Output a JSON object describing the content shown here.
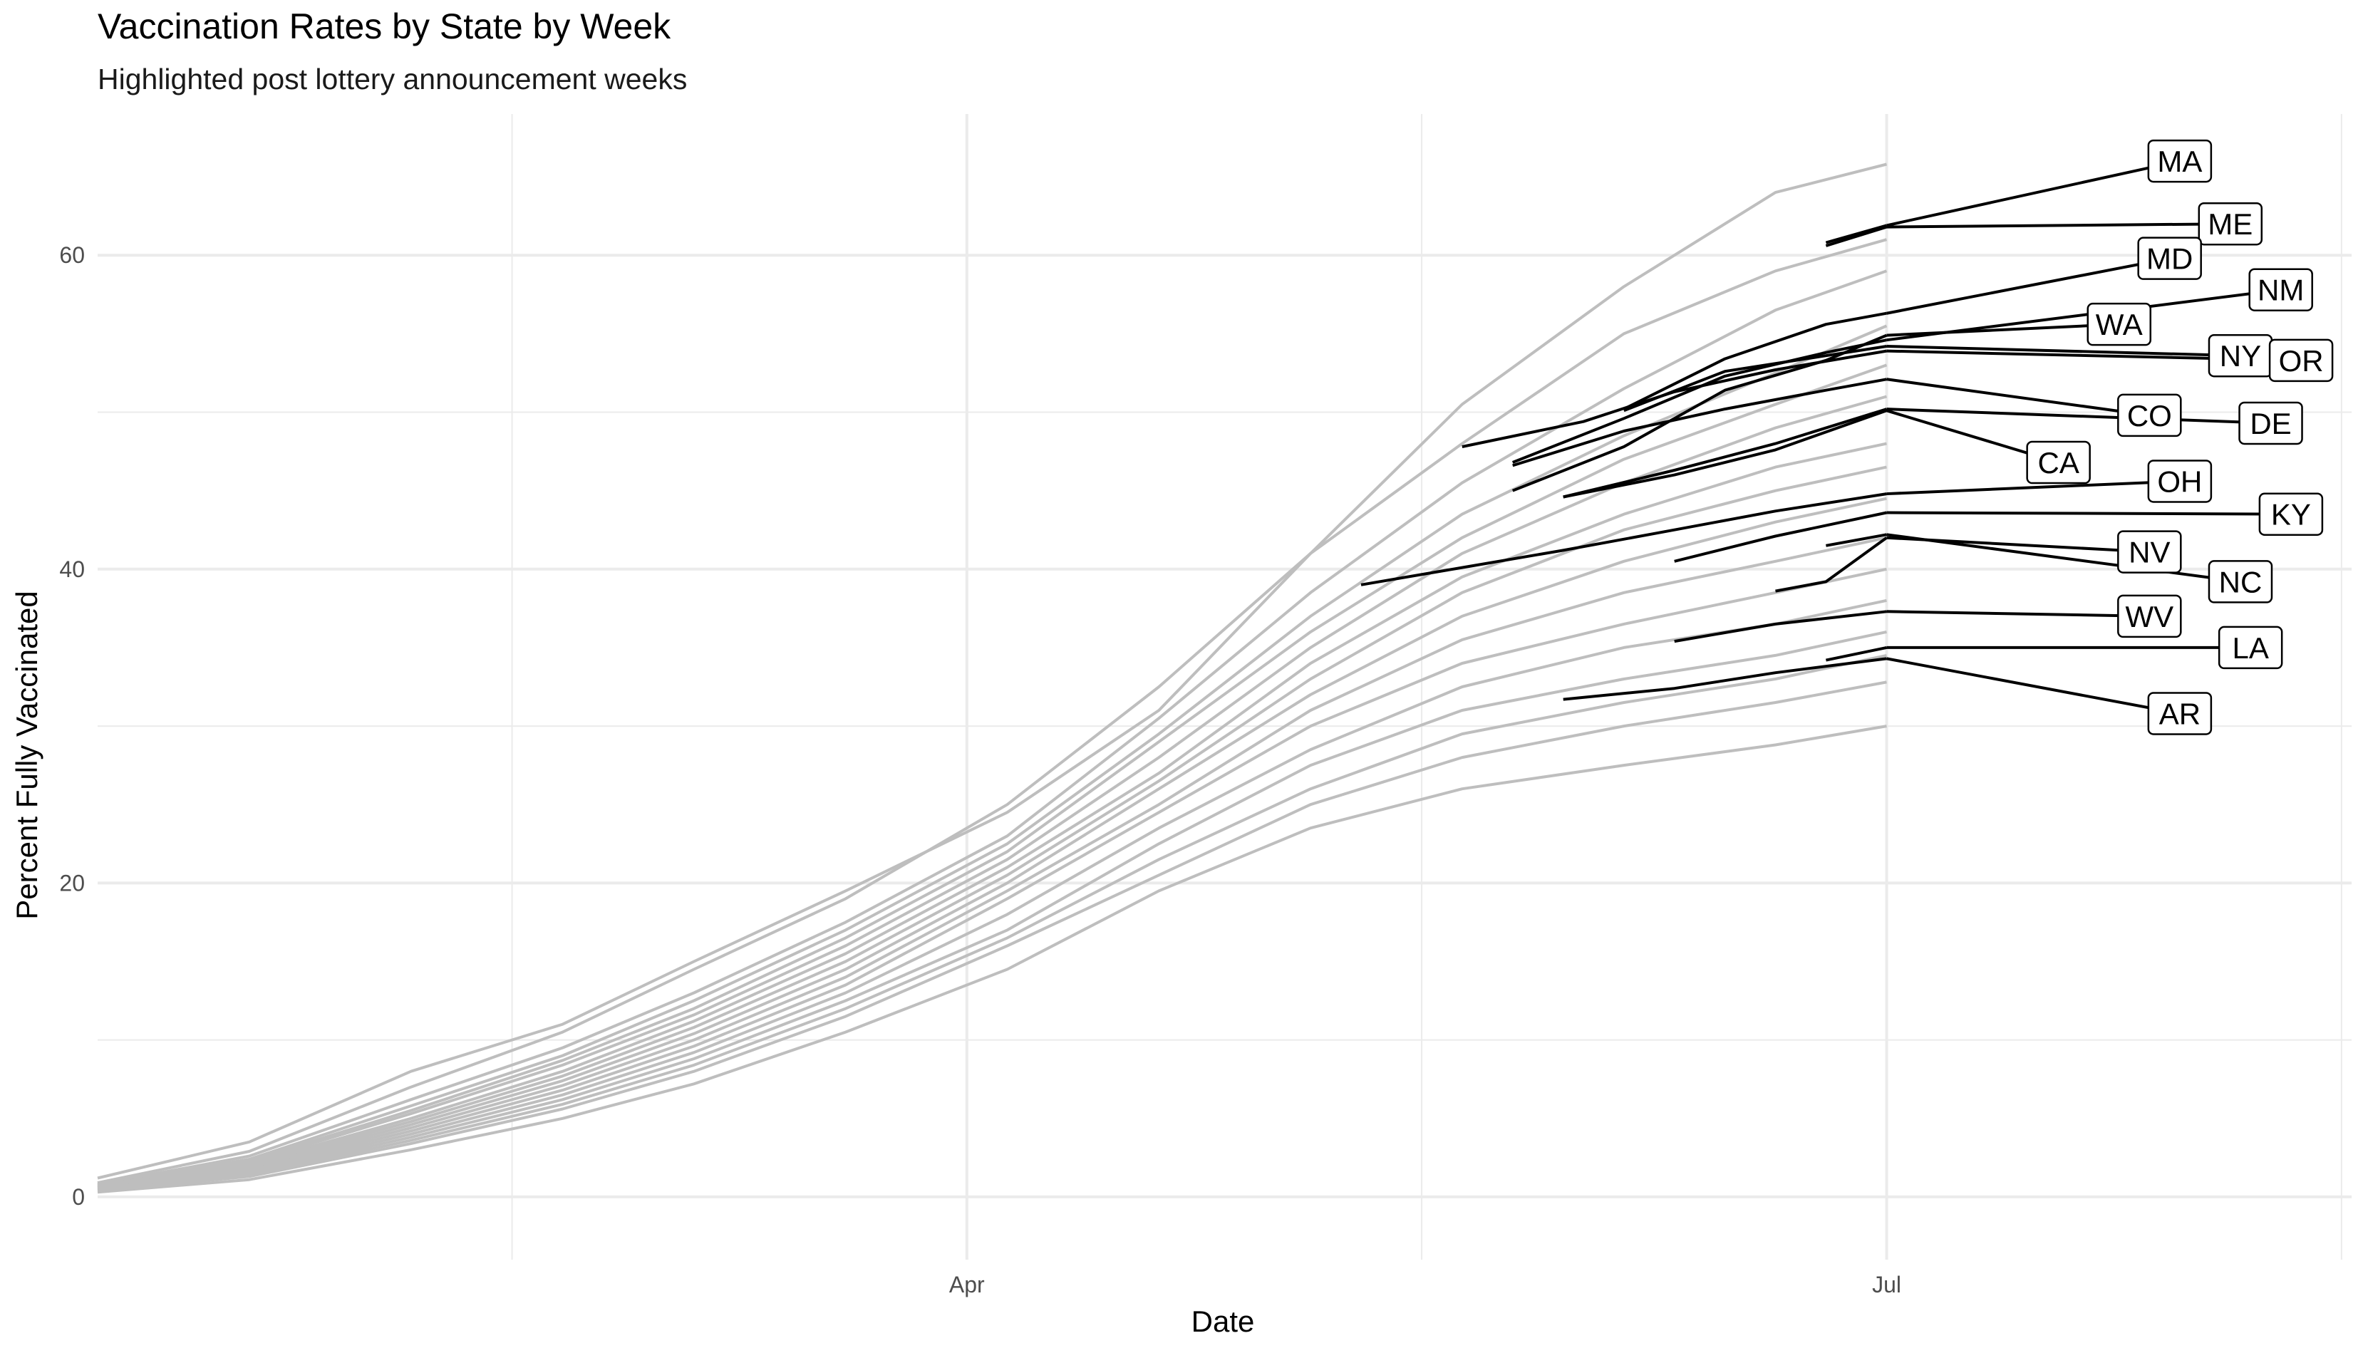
{
  "chart_data": {
    "type": "line",
    "title": "Vaccination Rates by State by Week",
    "subtitle": "Highlighted post lottery announcement weeks",
    "xlabel": "Date",
    "ylabel": "Percent Fully Vaccinated",
    "x_ticks": [
      "Apr",
      "Jul"
    ],
    "y_ticks": [
      0,
      20,
      40,
      60
    ],
    "ylim": [
      -4,
      69
    ],
    "xlim": [
      "2021-01-05",
      "2021-08-16"
    ],
    "grid": true,
    "colors": {
      "background": "#ffffff",
      "other_states": "#bebebe",
      "highlight": "#000000",
      "grid_major": "#ebebeb"
    },
    "background_states": [
      {
        "dates": [
          "2021-01-05",
          "2021-01-20",
          "2021-02-05",
          "2021-02-20",
          "2021-03-05",
          "2021-03-20",
          "2021-04-05",
          "2021-04-20",
          "2021-05-05",
          "2021-05-20",
          "2021-06-05",
          "2021-06-20",
          "2021-07-01"
        ],
        "values": [
          1.2,
          3.5,
          8.0,
          11.0,
          15.0,
          19.5,
          24.5,
          31.0,
          41.0,
          50.5,
          58.0,
          64.0,
          65.8
        ]
      },
      {
        "dates": [
          "2021-01-05",
          "2021-01-20",
          "2021-02-05",
          "2021-02-20",
          "2021-03-05",
          "2021-03-20",
          "2021-04-05",
          "2021-04-20",
          "2021-05-05",
          "2021-05-20",
          "2021-06-05",
          "2021-06-20",
          "2021-07-01"
        ],
        "values": [
          0.9,
          2.9,
          7.0,
          10.5,
          14.5,
          19.0,
          25.0,
          32.5,
          41.0,
          48.0,
          55.0,
          59.0,
          61.0
        ]
      },
      {
        "dates": [
          "2021-01-05",
          "2021-01-20",
          "2021-02-05",
          "2021-02-20",
          "2021-03-05",
          "2021-03-20",
          "2021-04-05",
          "2021-04-20",
          "2021-05-05",
          "2021-05-20",
          "2021-06-05",
          "2021-06-20",
          "2021-07-01"
        ],
        "values": [
          0.8,
          2.6,
          6.2,
          9.5,
          13.0,
          17.5,
          23.0,
          30.5,
          38.5,
          45.5,
          51.5,
          56.5,
          59.0
        ]
      },
      {
        "dates": [
          "2021-01-05",
          "2021-01-20",
          "2021-02-05",
          "2021-02-20",
          "2021-03-05",
          "2021-03-20",
          "2021-04-05",
          "2021-04-20",
          "2021-05-05",
          "2021-05-20",
          "2021-06-05",
          "2021-06-20",
          "2021-07-01"
        ],
        "values": [
          0.8,
          2.4,
          5.8,
          9.0,
          12.5,
          17.0,
          22.5,
          29.5,
          37.0,
          43.5,
          48.5,
          52.5,
          55.5
        ]
      },
      {
        "dates": [
          "2021-01-05",
          "2021-01-20",
          "2021-02-05",
          "2021-02-20",
          "2021-03-05",
          "2021-03-20",
          "2021-04-05",
          "2021-04-20",
          "2021-05-05",
          "2021-05-20",
          "2021-06-05",
          "2021-06-20",
          "2021-07-01"
        ],
        "values": [
          0.7,
          2.3,
          5.5,
          8.7,
          12.0,
          16.5,
          22.0,
          29.0,
          36.0,
          42.0,
          47.0,
          50.5,
          53.0
        ]
      },
      {
        "dates": [
          "2021-01-05",
          "2021-01-20",
          "2021-02-05",
          "2021-02-20",
          "2021-03-05",
          "2021-03-20",
          "2021-04-05",
          "2021-04-20",
          "2021-05-05",
          "2021-05-20",
          "2021-06-05",
          "2021-06-20",
          "2021-07-01"
        ],
        "values": [
          0.7,
          2.2,
          5.3,
          8.4,
          11.6,
          16.0,
          21.5,
          28.0,
          35.0,
          41.0,
          45.5,
          49.0,
          51.0
        ]
      },
      {
        "dates": [
          "2021-01-05",
          "2021-01-20",
          "2021-02-05",
          "2021-02-20",
          "2021-03-05",
          "2021-03-20",
          "2021-04-05",
          "2021-04-20",
          "2021-05-05",
          "2021-05-20",
          "2021-06-05",
          "2021-06-20",
          "2021-07-01"
        ],
        "values": [
          0.7,
          2.1,
          5.0,
          8.0,
          11.2,
          15.5,
          21.0,
          27.0,
          34.0,
          39.5,
          43.5,
          46.5,
          48.0
        ]
      },
      {
        "dates": [
          "2021-01-05",
          "2021-01-20",
          "2021-02-05",
          "2021-02-20",
          "2021-03-05",
          "2021-03-20",
          "2021-04-05",
          "2021-04-20",
          "2021-05-05",
          "2021-05-20",
          "2021-06-05",
          "2021-06-20",
          "2021-07-01"
        ],
        "values": [
          0.6,
          2.0,
          4.8,
          7.7,
          10.8,
          15.0,
          20.5,
          26.5,
          33.0,
          38.5,
          42.5,
          45.0,
          46.5
        ]
      },
      {
        "dates": [
          "2021-01-05",
          "2021-01-20",
          "2021-02-05",
          "2021-02-20",
          "2021-03-05",
          "2021-03-20",
          "2021-04-05",
          "2021-04-20",
          "2021-05-05",
          "2021-05-20",
          "2021-06-05",
          "2021-06-20",
          "2021-07-01"
        ],
        "values": [
          0.6,
          1.9,
          4.6,
          7.4,
          10.4,
          14.5,
          20.0,
          26.0,
          32.0,
          37.0,
          40.5,
          43.0,
          44.5
        ]
      },
      {
        "dates": [
          "2021-01-05",
          "2021-01-20",
          "2021-02-05",
          "2021-02-20",
          "2021-03-05",
          "2021-03-20",
          "2021-04-05",
          "2021-04-20",
          "2021-05-05",
          "2021-05-20",
          "2021-06-05",
          "2021-06-20",
          "2021-07-01"
        ],
        "values": [
          0.6,
          1.8,
          4.4,
          7.1,
          10.0,
          14.0,
          19.5,
          25.0,
          31.0,
          35.5,
          38.5,
          40.5,
          42.0
        ]
      },
      {
        "dates": [
          "2021-01-05",
          "2021-01-20",
          "2021-02-05",
          "2021-02-20",
          "2021-03-05",
          "2021-03-20",
          "2021-04-05",
          "2021-04-20",
          "2021-05-05",
          "2021-05-20",
          "2021-06-05",
          "2021-06-20",
          "2021-07-01"
        ],
        "values": [
          0.5,
          1.7,
          4.2,
          6.8,
          9.6,
          13.5,
          19.0,
          24.5,
          30.0,
          34.0,
          36.5,
          38.5,
          40.0
        ]
      },
      {
        "dates": [
          "2021-01-05",
          "2021-01-20",
          "2021-02-05",
          "2021-02-20",
          "2021-03-05",
          "2021-03-20",
          "2021-04-05",
          "2021-04-20",
          "2021-05-05",
          "2021-05-20",
          "2021-06-05",
          "2021-06-20",
          "2021-07-01"
        ],
        "values": [
          0.5,
          1.6,
          4.0,
          6.5,
          9.2,
          13.0,
          18.0,
          23.5,
          28.5,
          32.5,
          35.0,
          36.5,
          38.0
        ]
      },
      {
        "dates": [
          "2021-01-05",
          "2021-01-20",
          "2021-02-05",
          "2021-02-20",
          "2021-03-05",
          "2021-03-20",
          "2021-04-05",
          "2021-04-20",
          "2021-05-05",
          "2021-05-20",
          "2021-06-05",
          "2021-06-20",
          "2021-07-01"
        ],
        "values": [
          0.5,
          1.5,
          3.8,
          6.2,
          8.8,
          12.5,
          17.0,
          22.5,
          27.5,
          31.0,
          33.0,
          34.5,
          36.0
        ]
      },
      {
        "dates": [
          "2021-01-05",
          "2021-01-20",
          "2021-02-05",
          "2021-02-20",
          "2021-03-05",
          "2021-03-20",
          "2021-04-05",
          "2021-04-20",
          "2021-05-05",
          "2021-05-20",
          "2021-06-05",
          "2021-06-20",
          "2021-07-01"
        ],
        "values": [
          0.4,
          1.4,
          3.6,
          5.9,
          8.4,
          12.0,
          16.5,
          21.5,
          26.0,
          29.5,
          31.5,
          33.0,
          34.5
        ]
      },
      {
        "dates": [
          "2021-01-05",
          "2021-01-20",
          "2021-02-05",
          "2021-02-20",
          "2021-03-05",
          "2021-03-20",
          "2021-04-05",
          "2021-04-20",
          "2021-05-05",
          "2021-05-20",
          "2021-06-05",
          "2021-06-20",
          "2021-07-01"
        ],
        "values": [
          0.4,
          1.3,
          3.4,
          5.6,
          8.0,
          11.5,
          16.0,
          20.5,
          25.0,
          28.0,
          30.0,
          31.5,
          32.8
        ]
      },
      {
        "dates": [
          "2021-01-05",
          "2021-01-20",
          "2021-02-05",
          "2021-02-20",
          "2021-03-05",
          "2021-03-20",
          "2021-04-05",
          "2021-04-20",
          "2021-05-05",
          "2021-05-20",
          "2021-06-05",
          "2021-06-20",
          "2021-07-01"
        ],
        "values": [
          0.3,
          1.1,
          3.0,
          5.0,
          7.2,
          10.5,
          14.5,
          19.5,
          23.5,
          26.0,
          27.5,
          28.8,
          30.0
        ]
      }
    ],
    "highlighted_states": [
      {
        "name": "MA",
        "label_x": "2021-07-30",
        "label_y": 66.0,
        "dates": [
          "2021-06-25",
          "2021-07-01"
        ],
        "values": [
          60.8,
          61.9
        ]
      },
      {
        "name": "ME",
        "label_x": "2021-08-04",
        "label_y": 62.0,
        "dates": [
          "2021-06-25",
          "2021-07-01"
        ],
        "values": [
          60.6,
          61.8
        ]
      },
      {
        "name": "MD",
        "label_x": "2021-07-29",
        "label_y": 59.8,
        "dates": [
          "2021-06-05",
          "2021-06-15",
          "2021-06-25",
          "2021-07-01"
        ],
        "values": [
          50.2,
          53.4,
          55.6,
          56.3
        ]
      },
      {
        "name": "NM",
        "label_x": "2021-08-09",
        "label_y": 57.8,
        "dates": [
          "2021-05-25",
          "2021-06-05",
          "2021-06-15",
          "2021-06-25",
          "2021-07-01"
        ],
        "values": [
          46.8,
          49.6,
          52.3,
          53.8,
          54.6
        ]
      },
      {
        "name": "WA",
        "label_x": "2021-07-24",
        "label_y": 55.6,
        "dates": [
          "2021-05-25",
          "2021-06-05",
          "2021-06-15",
          "2021-06-25",
          "2021-07-01"
        ],
        "values": [
          45.0,
          47.8,
          51.4,
          53.3,
          54.9
        ]
      },
      {
        "name": "NY",
        "label_x": "2021-08-05",
        "label_y": 53.6,
        "dates": [
          "2021-06-05",
          "2021-06-15",
          "2021-06-25",
          "2021-07-01"
        ],
        "values": [
          50.1,
          52.6,
          53.6,
          54.2
        ]
      },
      {
        "name": "OR",
        "label_x": "2021-08-11",
        "label_y": 53.3,
        "dates": [
          "2021-05-20",
          "2021-06-01",
          "2021-06-10",
          "2021-06-20",
          "2021-07-01"
        ],
        "values": [
          47.8,
          49.4,
          51.3,
          52.7,
          53.9
        ]
      },
      {
        "name": "CO",
        "label_x": "2021-07-27",
        "label_y": 49.8,
        "dates": [
          "2021-05-25",
          "2021-06-05",
          "2021-06-15",
          "2021-06-25",
          "2021-07-01"
        ],
        "values": [
          46.6,
          48.8,
          50.2,
          51.4,
          52.1
        ]
      },
      {
        "name": "DE",
        "label_x": "2021-08-08",
        "label_y": 49.3,
        "dates": [
          "2021-05-30",
          "2021-06-10",
          "2021-06-20",
          "2021-07-01"
        ],
        "values": [
          44.6,
          46.3,
          48.0,
          50.2
        ]
      },
      {
        "name": "CA",
        "label_x": "2021-07-18",
        "label_y": 46.8,
        "dates": [
          "2021-05-30",
          "2021-06-10",
          "2021-06-20",
          "2021-07-01"
        ],
        "values": [
          44.6,
          46.0,
          47.6,
          50.1
        ]
      },
      {
        "name": "OH",
        "label_x": "2021-07-30",
        "label_y": 45.6,
        "dates": [
          "2021-05-10",
          "2021-05-20",
          "2021-05-30",
          "2021-06-10",
          "2021-06-20",
          "2021-07-01"
        ],
        "values": [
          39.0,
          40.1,
          41.2,
          42.5,
          43.7,
          44.8
        ]
      },
      {
        "name": "KY",
        "label_x": "2021-08-10",
        "label_y": 43.5,
        "dates": [
          "2021-06-10",
          "2021-06-20",
          "2021-07-01"
        ],
        "values": [
          40.5,
          42.1,
          43.6
        ]
      },
      {
        "name": "NV",
        "label_x": "2021-07-27",
        "label_y": 41.1,
        "dates": [
          "2021-06-20",
          "2021-06-25",
          "2021-07-01"
        ],
        "values": [
          38.6,
          39.2,
          42.0
        ]
      },
      {
        "name": "NC",
        "label_x": "2021-08-05",
        "label_y": 39.2,
        "dates": [
          "2021-06-25",
          "2021-07-01"
        ],
        "values": [
          41.5,
          42.2
        ]
      },
      {
        "name": "WV",
        "label_x": "2021-07-27",
        "label_y": 37.0,
        "dates": [
          "2021-06-10",
          "2021-06-20",
          "2021-07-01"
        ],
        "values": [
          35.4,
          36.5,
          37.3
        ]
      },
      {
        "name": "LA",
        "label_x": "2021-08-06",
        "label_y": 35.0,
        "dates": [
          "2021-06-25",
          "2021-07-01"
        ],
        "values": [
          34.2,
          35.0
        ]
      },
      {
        "name": "AR",
        "label_x": "2021-07-30",
        "label_y": 30.8,
        "dates": [
          "2021-05-30",
          "2021-06-10",
          "2021-06-20",
          "2021-07-01"
        ],
        "values": [
          31.7,
          32.4,
          33.4,
          34.3
        ]
      }
    ]
  }
}
